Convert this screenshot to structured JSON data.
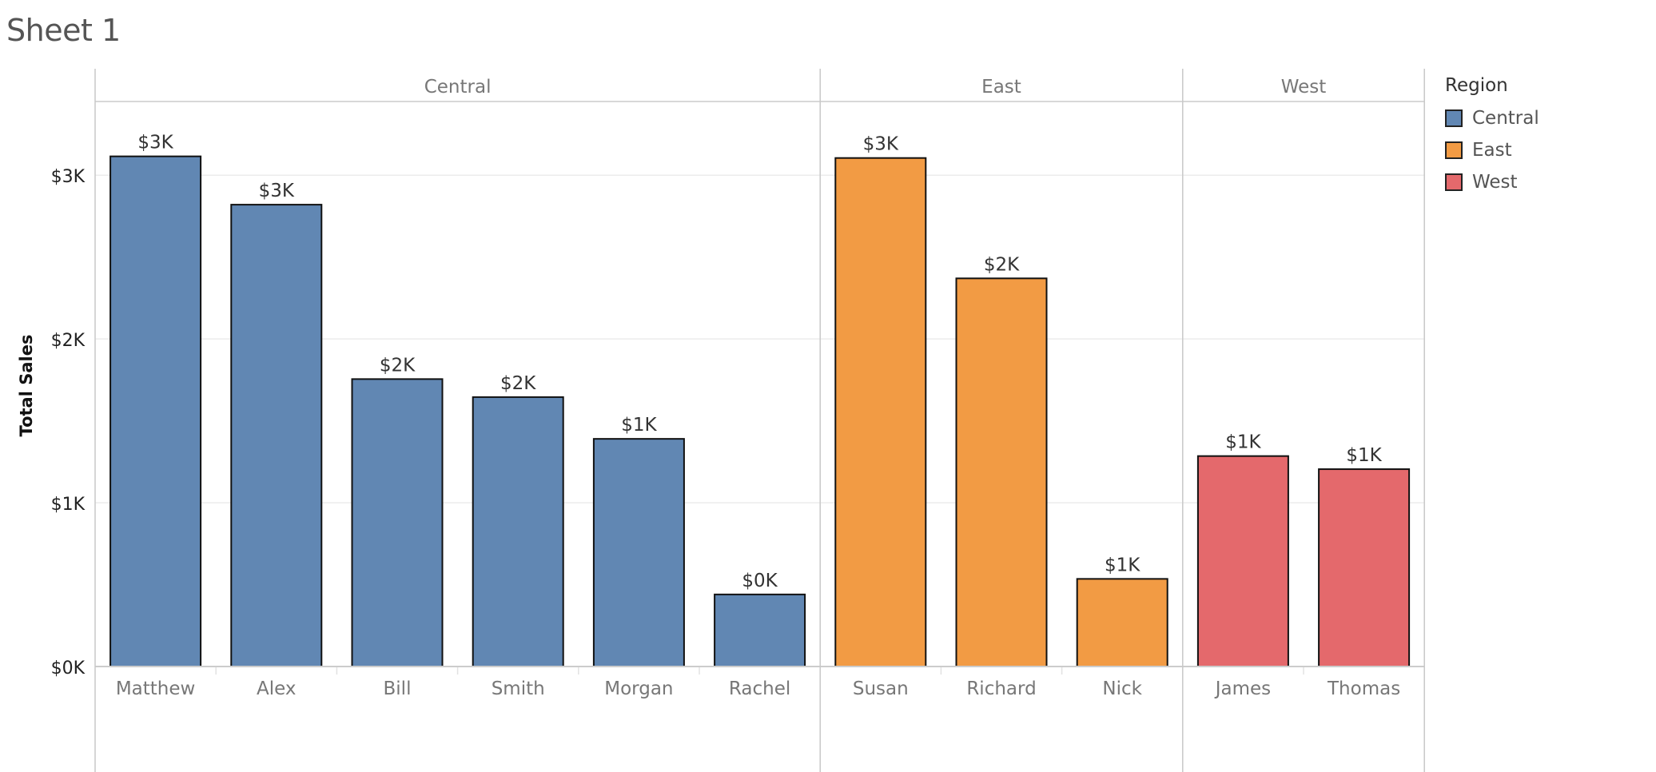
{
  "sheet": {
    "title": "Sheet 1"
  },
  "legend": {
    "title": "Region",
    "items": [
      {
        "label": "Central",
        "color": "#6187b3"
      },
      {
        "label": "East",
        "color": "#f29b44"
      },
      {
        "label": "West",
        "color": "#e4696c"
      }
    ]
  },
  "chart_data": {
    "type": "bar",
    "title": "Sheet 1",
    "ylabel": "Total Sales",
    "xlabel": "",
    "ylim": [
      0,
      3450
    ],
    "y_ticks": [
      {
        "value": 0,
        "label": "$0K"
      },
      {
        "value": 1000,
        "label": "$1K"
      },
      {
        "value": 2000,
        "label": "$2K"
      },
      {
        "value": 3000,
        "label": "$3K"
      }
    ],
    "grid": true,
    "legend_position": "right",
    "panels": [
      {
        "region": "Central",
        "color": "#6187b3",
        "bars": [
          {
            "name": "Matthew",
            "value": 3115,
            "label": "$3K"
          },
          {
            "name": "Alex",
            "value": 2820,
            "label": "$3K"
          },
          {
            "name": "Bill",
            "value": 1755,
            "label": "$2K"
          },
          {
            "name": "Smith",
            "value": 1645,
            "label": "$2K"
          },
          {
            "name": "Morgan",
            "value": 1390,
            "label": "$1K"
          },
          {
            "name": "Rachel",
            "value": 440,
            "label": "$0K"
          }
        ]
      },
      {
        "region": "East",
        "color": "#f29b44",
        "bars": [
          {
            "name": "Susan",
            "value": 3105,
            "label": "$3K"
          },
          {
            "name": "Richard",
            "value": 2370,
            "label": "$2K"
          },
          {
            "name": "Nick",
            "value": 535,
            "label": "$1K"
          }
        ]
      },
      {
        "region": "West",
        "color": "#e4696c",
        "bars": [
          {
            "name": "James",
            "value": 1285,
            "label": "$1K"
          },
          {
            "name": "Thomas",
            "value": 1205,
            "label": "$1K"
          }
        ]
      }
    ]
  }
}
